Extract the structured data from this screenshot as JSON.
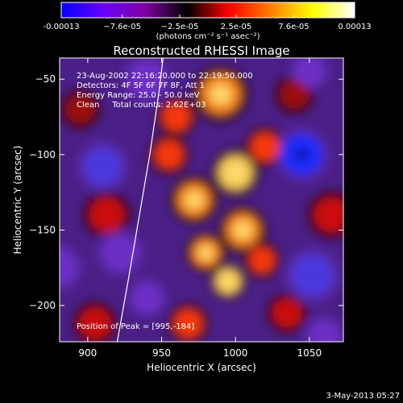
{
  "chart_data": {
    "type": "heatmap",
    "title": "Reconstructed RHESSI Image",
    "xlabel": "Heliocentric X (arcsec)",
    "ylabel": "Heliocentric Y (arcsec)",
    "x_ticks": [
      900,
      950,
      1000,
      1050
    ],
    "y_ticks": [
      -50,
      -100,
      -150,
      -200
    ],
    "x_tick_labels": [
      "900",
      "950",
      "1000",
      "1050"
    ],
    "y_tick_labels": [
      "−50",
      "−100",
      "−150",
      "−200"
    ],
    "xlim": [
      881,
      1073
    ],
    "ylim": [
      -224,
      -36
    ],
    "colorbar": {
      "range": [
        -0.00013,
        0.00013
      ],
      "tick_values": [
        -0.00013,
        -7.6e-05,
        -2.5e-05,
        2.5e-05,
        7.6e-05,
        0.00013
      ],
      "tick_labels": [
        "-0.00013",
        "−7.6e-05",
        "−2.5e-05",
        "2.5e-05",
        "7.6e-05",
        "0.00013"
      ],
      "unit_label": "(photons cm⁻² s⁻¹ asec⁻²)",
      "colors": [
        "#0000ff",
        "#6a00ff",
        "#7f00a0",
        "#000000",
        "#ff0000",
        "#ff7f00",
        "#ffff00",
        "#ffffff"
      ]
    },
    "annotations": [
      "23-Aug-2002 22:16:20.000 to 22:19:50.000",
      "Detectors: 4F 5F 6F 7F 8F, Att 1",
      "Energy Range: 25.0 - 50.0 keV",
      "Clean     Total counts: 2.62E+03"
    ],
    "peak_label": "Position of Peak = [995,-184]",
    "peak": [
      995,
      -184
    ],
    "limb_curve": [
      [
        920,
        -224
      ],
      [
        928,
        -180
      ],
      [
        935,
        -140
      ],
      [
        942,
        -100
      ],
      [
        948,
        -60
      ],
      [
        951,
        -36
      ]
    ],
    "blobs": [
      {
        "x": 990,
        "y": -60,
        "s": 14,
        "a": 0.9
      },
      {
        "x": 1000,
        "y": -112,
        "s": 12,
        "a": 1.0
      },
      {
        "x": 972,
        "y": -130,
        "s": 12,
        "a": 0.85
      },
      {
        "x": 1005,
        "y": -150,
        "s": 12,
        "a": 0.9
      },
      {
        "x": 980,
        "y": -165,
        "s": 10,
        "a": 0.8
      },
      {
        "x": 995,
        "y": -184,
        "s": 9,
        "a": 1.0
      },
      {
        "x": 1018,
        "y": -170,
        "s": 9,
        "a": 0.75
      },
      {
        "x": 955,
        "y": -100,
        "s": 10,
        "a": 0.7
      },
      {
        "x": 960,
        "y": -75,
        "s": 10,
        "a": 0.65
      },
      {
        "x": 1020,
        "y": -95,
        "s": 10,
        "a": 0.75
      },
      {
        "x": 1035,
        "y": -205,
        "s": 10,
        "a": 0.55
      },
      {
        "x": 913,
        "y": -140,
        "s": 12,
        "a": 0.5
      },
      {
        "x": 905,
        "y": -212,
        "s": 11,
        "a": 0.45
      },
      {
        "x": 1040,
        "y": -60,
        "s": 10,
        "a": 0.35
      },
      {
        "x": 968,
        "y": -212,
        "s": 10,
        "a": 0.7
      },
      {
        "x": 895,
        "y": -70,
        "s": 10,
        "a": 0.3
      },
      {
        "x": 1065,
        "y": -140,
        "s": 12,
        "a": 0.4
      },
      {
        "x": 1045,
        "y": -100,
        "s": 14,
        "a": -1.0
      },
      {
        "x": 1052,
        "y": -180,
        "s": 14,
        "a": -0.6
      },
      {
        "x": 910,
        "y": -108,
        "s": 13,
        "a": -0.75
      },
      {
        "x": 922,
        "y": -165,
        "s": 12,
        "a": -0.55
      },
      {
        "x": 940,
        "y": -50,
        "s": 12,
        "a": -0.5
      },
      {
        "x": 1050,
        "y": -45,
        "s": 10,
        "a": -0.45
      },
      {
        "x": 880,
        "y": -175,
        "s": 12,
        "a": -0.5
      },
      {
        "x": 1060,
        "y": -220,
        "s": 10,
        "a": -0.4
      },
      {
        "x": 940,
        "y": -195,
        "s": 10,
        "a": -0.4
      }
    ],
    "background_level": -0.55,
    "grid": false
  },
  "footer": {
    "date": "3-May-2013 05:27"
  }
}
